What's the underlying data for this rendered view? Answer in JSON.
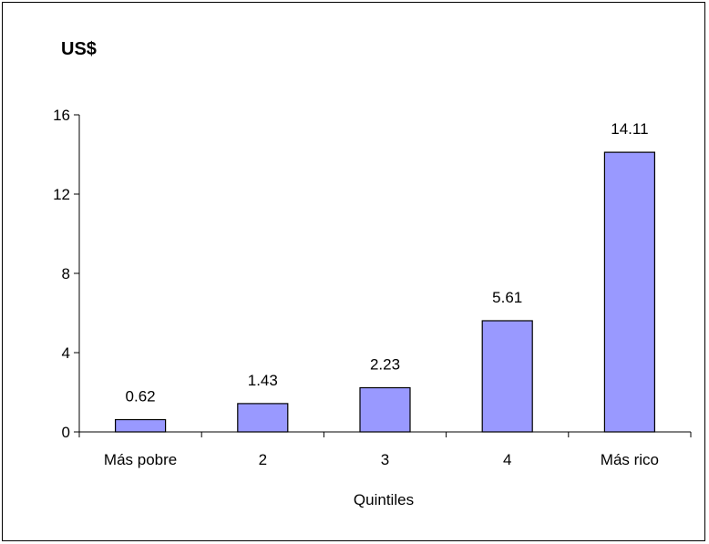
{
  "chart_data": {
    "type": "bar",
    "unit_label": "US$",
    "xlabel": "Quintiles",
    "ylabel": "",
    "categories": [
      "Más pobre",
      "2",
      "3",
      "4",
      "Más rico"
    ],
    "values": [
      0.62,
      1.43,
      2.23,
      5.61,
      14.11
    ],
    "value_labels": [
      "0.62",
      "1.43",
      "2.23",
      "5.61",
      "14.11"
    ],
    "ylim": [
      0,
      16
    ],
    "yticks": [
      0,
      4,
      8,
      12,
      16
    ],
    "grid": false,
    "legend": "none",
    "bar_color": "#9999ff",
    "bar_border": "#000000"
  }
}
